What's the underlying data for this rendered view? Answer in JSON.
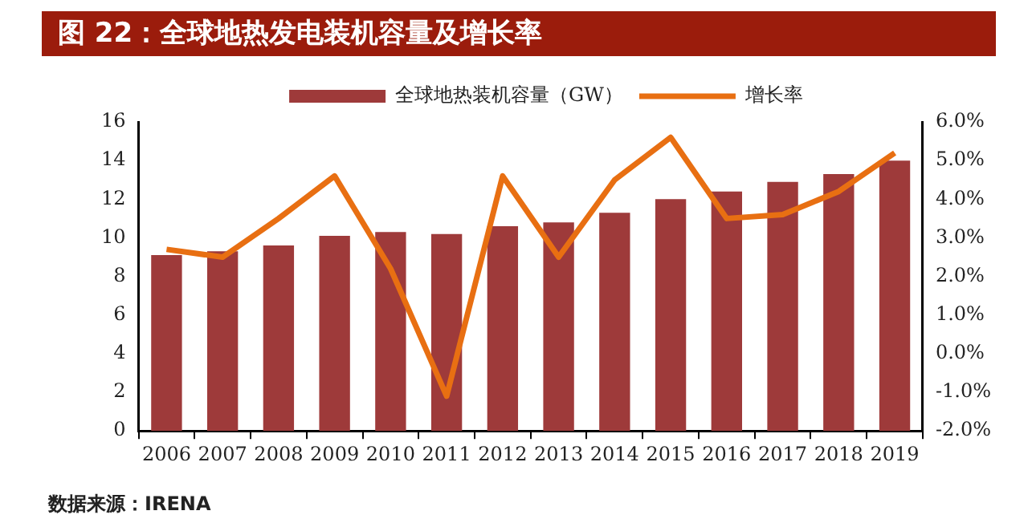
{
  "chart_data": {
    "type": "bar",
    "title": "图 22：全球地热发电装机容量及增长率",
    "categories": [
      "2006",
      "2007",
      "2008",
      "2009",
      "2010",
      "2011",
      "2012",
      "2013",
      "2014",
      "2015",
      "2016",
      "2017",
      "2018",
      "2019"
    ],
    "series": [
      {
        "name": "全球地热装机容量（GW）",
        "color": "#9e3a3a",
        "values": [
          9.1,
          9.3,
          9.6,
          10.1,
          10.3,
          10.2,
          10.6,
          10.8,
          11.3,
          12.0,
          12.4,
          12.9,
          13.3,
          14.0
        ]
      },
      {
        "name": "增长率",
        "type": "line",
        "axis": "y2",
        "color": "#e86f12",
        "values": [
          2.7,
          2.5,
          3.5,
          4.6,
          2.2,
          -1.1,
          4.6,
          2.5,
          4.5,
          5.6,
          3.5,
          3.6,
          4.2,
          5.2
        ]
      }
    ],
    "ylim": [
      0,
      16
    ],
    "yticks": [
      0,
      2,
      4,
      6,
      8,
      10,
      12,
      14,
      16
    ],
    "y2lim": [
      -2,
      6
    ],
    "y2ticks": [
      {
        "value": -2,
        "label": "-2.0%"
      },
      {
        "value": -1,
        "label": "-1.0%"
      },
      {
        "value": 0,
        "label": "0.0%"
      },
      {
        "value": 1,
        "label": "1.0%"
      },
      {
        "value": 2,
        "label": "2.0%"
      },
      {
        "value": 3,
        "label": "3.0%"
      },
      {
        "value": 4,
        "label": "4.0%"
      },
      {
        "value": 5,
        "label": "5.0%"
      },
      {
        "value": 6,
        "label": "6.0%"
      }
    ],
    "grid": false,
    "legend": "top",
    "marker": "none",
    "line_style": "solid",
    "annotations": [
      "数据来源：IRENA"
    ]
  }
}
